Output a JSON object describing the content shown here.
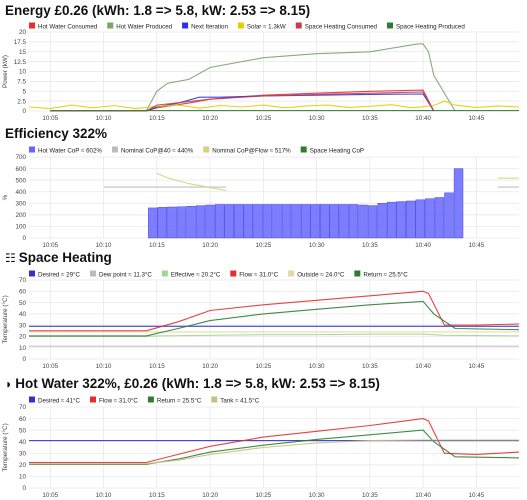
{
  "panels": [
    {
      "title": "Energy £0.26 (kWh: 1.8 => 5.8, kW: 2.53 => 8.15)",
      "icon": ""
    },
    {
      "title": "Efficiency 322%",
      "icon": ""
    },
    {
      "title": "Space Heating",
      "icon": "radiator-icon"
    },
    {
      "title": "Hot Water 322%, £0.26 (kWh: 1.8 => 5.8, kW: 2.53 => 8.15)",
      "icon": "water-drop-icon"
    }
  ],
  "chart_data": [
    {
      "type": "line",
      "title": "Energy £0.26 (kWh: 1.8 => 5.8, kW: 2.53 => 8.15)",
      "ylabel": "Power (kW)",
      "ylim": [
        0,
        20
      ],
      "yticks": [
        0,
        2.5,
        5,
        7.5,
        10,
        12.5,
        15,
        17.5,
        20
      ],
      "xticks": [
        "10:05",
        "10:10",
        "10:15",
        "10:20",
        "10:25",
        "10:30",
        "10:35",
        "10:40",
        "10:45"
      ],
      "xlim": [
        -2,
        44
      ],
      "grid": true,
      "legend": "top-left",
      "series": [
        {
          "name": "Hot Water Consumed",
          "color": "#e03030",
          "x": [
            0,
            9,
            10,
            13,
            15,
            20,
            25,
            30,
            35,
            36
          ],
          "y": [
            0,
            0,
            0.8,
            2,
            3,
            4,
            4.5,
            5,
            5.3,
            0
          ]
        },
        {
          "name": "Hot Water Produced",
          "color": "#7aa36e",
          "x": [
            0,
            9,
            10,
            11,
            13,
            15,
            20,
            25,
            30,
            34.5,
            35,
            35.5,
            36,
            38
          ],
          "y": [
            0,
            0,
            5,
            7,
            8,
            11,
            13.5,
            14.5,
            15,
            17,
            17,
            15,
            9,
            0
          ]
        },
        {
          "name": "Next Iteration",
          "color": "#3030e0",
          "x": [
            0,
            9,
            10,
            12,
            14,
            16,
            20,
            25,
            30,
            35,
            36
          ],
          "y": [
            0,
            0,
            1,
            2,
            3.5,
            3.5,
            3.8,
            4,
            4.2,
            4.3,
            0
          ]
        },
        {
          "name": "Solar ≈ 1.3kW",
          "color": "#e0d000",
          "x": [
            -2,
            0,
            2,
            4,
            6,
            8,
            10,
            12,
            14,
            16,
            18,
            20,
            22,
            24,
            26,
            28,
            30,
            32,
            34,
            36,
            37,
            38,
            40,
            42,
            44
          ],
          "y": [
            1,
            0.6,
            1.5,
            0.8,
            1.4,
            0.6,
            1.2,
            1.5,
            0.7,
            1.4,
            1,
            1.5,
            0.8,
            1.3,
            1.5,
            0.9,
            1.2,
            1.6,
            0.8,
            1.4,
            2.5,
            1.5,
            0.9,
            1.3,
            1
          ]
        },
        {
          "name": "Space Heating Consumed",
          "color": "#c04050",
          "x": [
            0,
            9,
            10,
            15,
            20,
            25,
            30,
            35,
            36
          ],
          "y": [
            0,
            0,
            1.5,
            3,
            3.8,
            4.2,
            4.5,
            4.8,
            0
          ]
        },
        {
          "name": "Space Heating Produced",
          "color": "#2e7d32",
          "x": [
            0,
            44
          ],
          "y": [
            0.1,
            0.1
          ]
        }
      ]
    },
    {
      "type": "bar",
      "title": "Efficiency 322%",
      "ylabel": "%",
      "ylim": [
        0,
        700
      ],
      "yticks": [
        0,
        100,
        200,
        300,
        400,
        500,
        600,
        700
      ],
      "xticks": [
        "10:05",
        "10:10",
        "10:15",
        "10:20",
        "10:25",
        "10:30",
        "10:35",
        "10:40",
        "10:45"
      ],
      "xlim": [
        -2,
        44
      ],
      "grid": true,
      "legend": "top-left",
      "bar_series": {
        "name": "Hot Water CoP ≈ 602%",
        "color": "#6666ff",
        "x_start": 9.2,
        "x_end": 38.8,
        "values": [
          260,
          265,
          268,
          270,
          275,
          280,
          285,
          290,
          290,
          290,
          290,
          290,
          290,
          290,
          290,
          290,
          290,
          290,
          290,
          290,
          290,
          290,
          285,
          280,
          300,
          310,
          315,
          320,
          330,
          340,
          350,
          390,
          600
        ]
      },
      "series": [
        {
          "name": "Nominal CoP@40 ≈ 440%",
          "color": "#bbbbbb",
          "x": [
            5,
            16.5
          ],
          "y": [
            440,
            440
          ]
        },
        {
          "name": "Nominal CoP@Flow ≈ 517%",
          "color": "#d8d080",
          "x": [
            10,
            11,
            13,
            16.5
          ],
          "y": [
            560,
            520,
            470,
            410
          ]
        },
        {
          "name": "Space Heating CoP",
          "color": "#2e7d32",
          "x": [],
          "y": []
        }
      ],
      "extra_lines": [
        {
          "color": "#bbbbbb",
          "x": [
            42,
            44
          ],
          "y": [
            440,
            440
          ]
        },
        {
          "color": "#d8d080",
          "x": [
            42,
            44
          ],
          "y": [
            517,
            517
          ]
        }
      ]
    },
    {
      "type": "line",
      "title": "Space Heating",
      "ylabel": "Temperature (°C)",
      "ylim": [
        0,
        70
      ],
      "yticks": [
        0,
        10,
        20,
        30,
        40,
        50,
        60,
        70
      ],
      "xticks": [
        "10:05",
        "10:10",
        "10:15",
        "10:20",
        "10:25",
        "10:30",
        "10:35",
        "10:40",
        "10:45"
      ],
      "xlim": [
        -2,
        44
      ],
      "grid": true,
      "legend": "top-left",
      "series": [
        {
          "name": "Desired ≈ 29°C",
          "color": "#3333cc",
          "x": [
            -2,
            44
          ],
          "y": [
            29,
            29
          ]
        },
        {
          "name": "Dew point ≈ 11.3°C",
          "color": "#bbbbbb",
          "x": [
            -2,
            44
          ],
          "y": [
            11.3,
            11.3
          ]
        },
        {
          "name": "Effective ≈ 20.2°C",
          "color": "#a0d890",
          "x": [
            -2,
            9,
            10,
            15,
            20,
            25,
            30,
            35,
            37,
            44
          ],
          "y": [
            20,
            20,
            20.5,
            21,
            21.5,
            21.5,
            22,
            22,
            21,
            20.5
          ]
        },
        {
          "name": "Flow ≈ 31.0°C",
          "color": "#e03030",
          "x": [
            -2,
            9,
            12,
            15,
            20,
            25,
            30,
            35,
            35.5,
            37,
            40,
            44
          ],
          "y": [
            25,
            25,
            33,
            43,
            48,
            52,
            56,
            60,
            58,
            30,
            30,
            31
          ]
        },
        {
          "name": "Outside ≈ 24.0°C",
          "color": "#e0d8a0",
          "x": [
            -2,
            44
          ],
          "y": [
            24,
            24
          ]
        },
        {
          "name": "Return ≈ 25.5°C",
          "color": "#2e7d32",
          "x": [
            -2,
            9,
            12,
            15,
            20,
            25,
            30,
            35,
            36,
            38,
            44
          ],
          "y": [
            20.5,
            20.5,
            27,
            34,
            40,
            44,
            48,
            51,
            40,
            27,
            26
          ]
        }
      ]
    },
    {
      "type": "line",
      "title": "Hot Water 322%, £0.26 (kWh: 1.8 => 5.8, kW: 2.53 => 8.15)",
      "ylabel": "Temperature (°C)",
      "ylim": [
        0,
        70
      ],
      "yticks": [
        0,
        10,
        20,
        30,
        40,
        50,
        60,
        70
      ],
      "xticks": [
        "10:05",
        "10:10",
        "10:15",
        "10:20",
        "10:25",
        "10:30",
        "10:35",
        "10:40",
        "10:45"
      ],
      "xlim": [
        -2,
        44
      ],
      "grid": true,
      "legend": "top-left",
      "series": [
        {
          "name": "Desired ≈ 41°C",
          "color": "#3333cc",
          "x": [
            -2,
            44
          ],
          "y": [
            41,
            41
          ]
        },
        {
          "name": "Flow ≈ 31.0°C",
          "color": "#e03030",
          "x": [
            -2,
            9,
            12,
            15,
            20,
            25,
            30,
            35,
            35.5,
            37,
            40,
            44
          ],
          "y": [
            22,
            22,
            29,
            36,
            44,
            49,
            54,
            60,
            58,
            30,
            29,
            31
          ]
        },
        {
          "name": "Return ≈ 25.5°C",
          "color": "#2e7d32",
          "x": [
            -2,
            9,
            12,
            15,
            20,
            25,
            30,
            35,
            36,
            38,
            44
          ],
          "y": [
            20.5,
            20.5,
            25,
            31,
            37,
            42,
            46,
            50,
            40,
            27,
            26
          ]
        },
        {
          "name": "Tank ≈ 41.5°C",
          "color": "#c8c080",
          "x": [
            -2,
            9,
            12,
            15,
            20,
            25,
            30,
            35,
            40,
            44
          ],
          "y": [
            21,
            21,
            24,
            29,
            35,
            39,
            41,
            41.5,
            41.5,
            41.5
          ]
        }
      ]
    }
  ]
}
